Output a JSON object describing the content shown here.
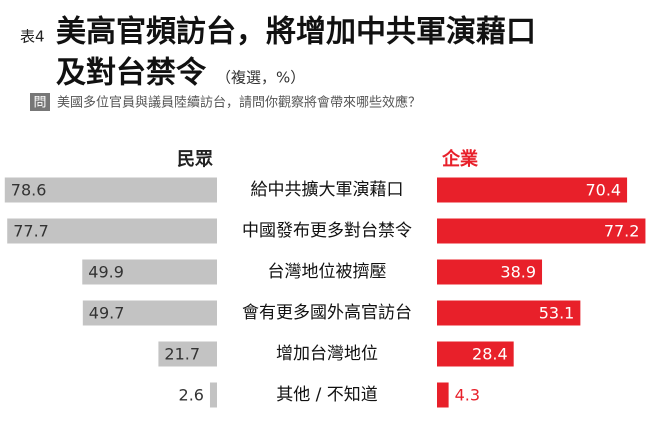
{
  "chart_data": {
    "type": "butterfly",
    "title_prefix": "表4",
    "title_lines": [
      "美高官頻訪台，將增加中共軍演藉口",
      "及對台禁令"
    ],
    "subtitle": "（複選，%）",
    "question_tag": "問",
    "question": "美國多位官員與議員陸續訪台，請問你觀察將會帶來哪些效應？",
    "categories": [
      "給中共擴大軍演藉口",
      "中國發布更多對台禁令",
      "台灣地位被擠壓",
      "會有更多國外高官訪台",
      "增加台灣地位",
      "其他 / 不知道"
    ],
    "series": [
      {
        "name": "民眾",
        "color": "#c3c3c3",
        "values": [
          78.6,
          77.7,
          49.9,
          49.7,
          21.7,
          2.6
        ]
      },
      {
        "name": "企業",
        "color": "#e8202a",
        "values": [
          70.4,
          77.2,
          38.9,
          53.1,
          28.4,
          4.3
        ]
      }
    ]
  }
}
